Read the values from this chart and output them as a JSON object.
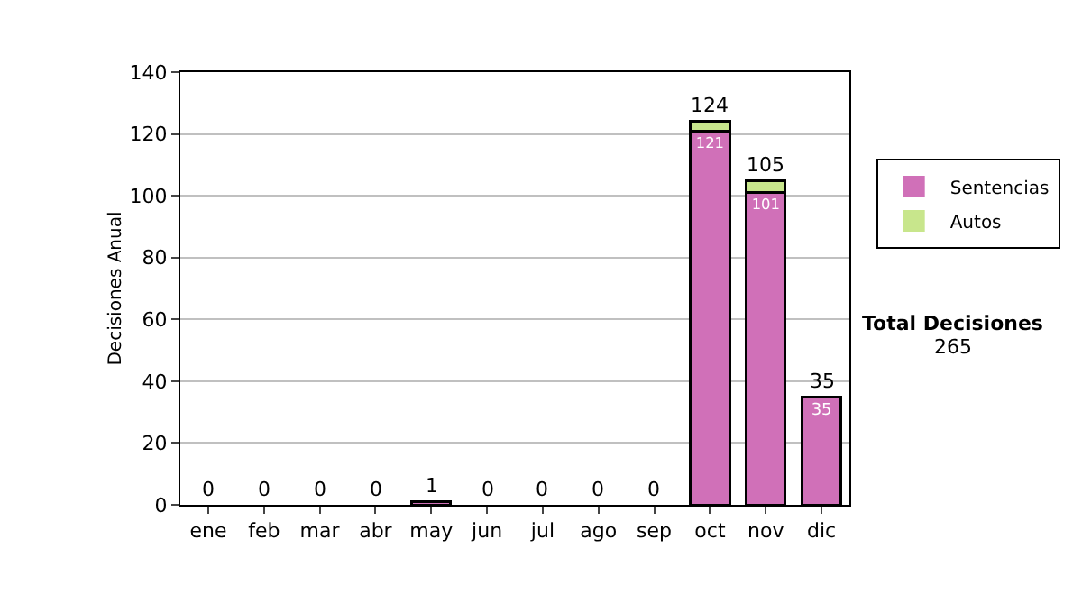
{
  "chart_data": {
    "type": "bar",
    "stacked": true,
    "ylabel": "Decisiones Anual",
    "categories": [
      "ene",
      "feb",
      "mar",
      "abr",
      "may",
      "jun",
      "jul",
      "ago",
      "sep",
      "oct",
      "nov",
      "dic"
    ],
    "series": [
      {
        "name": "Sentencias",
        "color": "#d070b8",
        "values": [
          0,
          0,
          0,
          0,
          1,
          0,
          0,
          0,
          0,
          121,
          101,
          35
        ],
        "value_labels": [
          null,
          null,
          null,
          null,
          null,
          null,
          null,
          null,
          null,
          "121",
          "101",
          "35"
        ]
      },
      {
        "name": "Autos",
        "color": "#c8e68c",
        "values": [
          0,
          0,
          0,
          0,
          0,
          0,
          0,
          0,
          0,
          3,
          4,
          0
        ]
      }
    ],
    "totals": [
      "0",
      "0",
      "0",
      "0",
      "1",
      "0",
      "0",
      "0",
      "0",
      "124",
      "105",
      "35"
    ],
    "ylim": [
      0,
      140
    ],
    "yticks": [
      0,
      20,
      40,
      60,
      80,
      100,
      120,
      140
    ],
    "grid": "y",
    "legend": "right",
    "annotations": [
      "Total Decisiones",
      "265"
    ]
  }
}
